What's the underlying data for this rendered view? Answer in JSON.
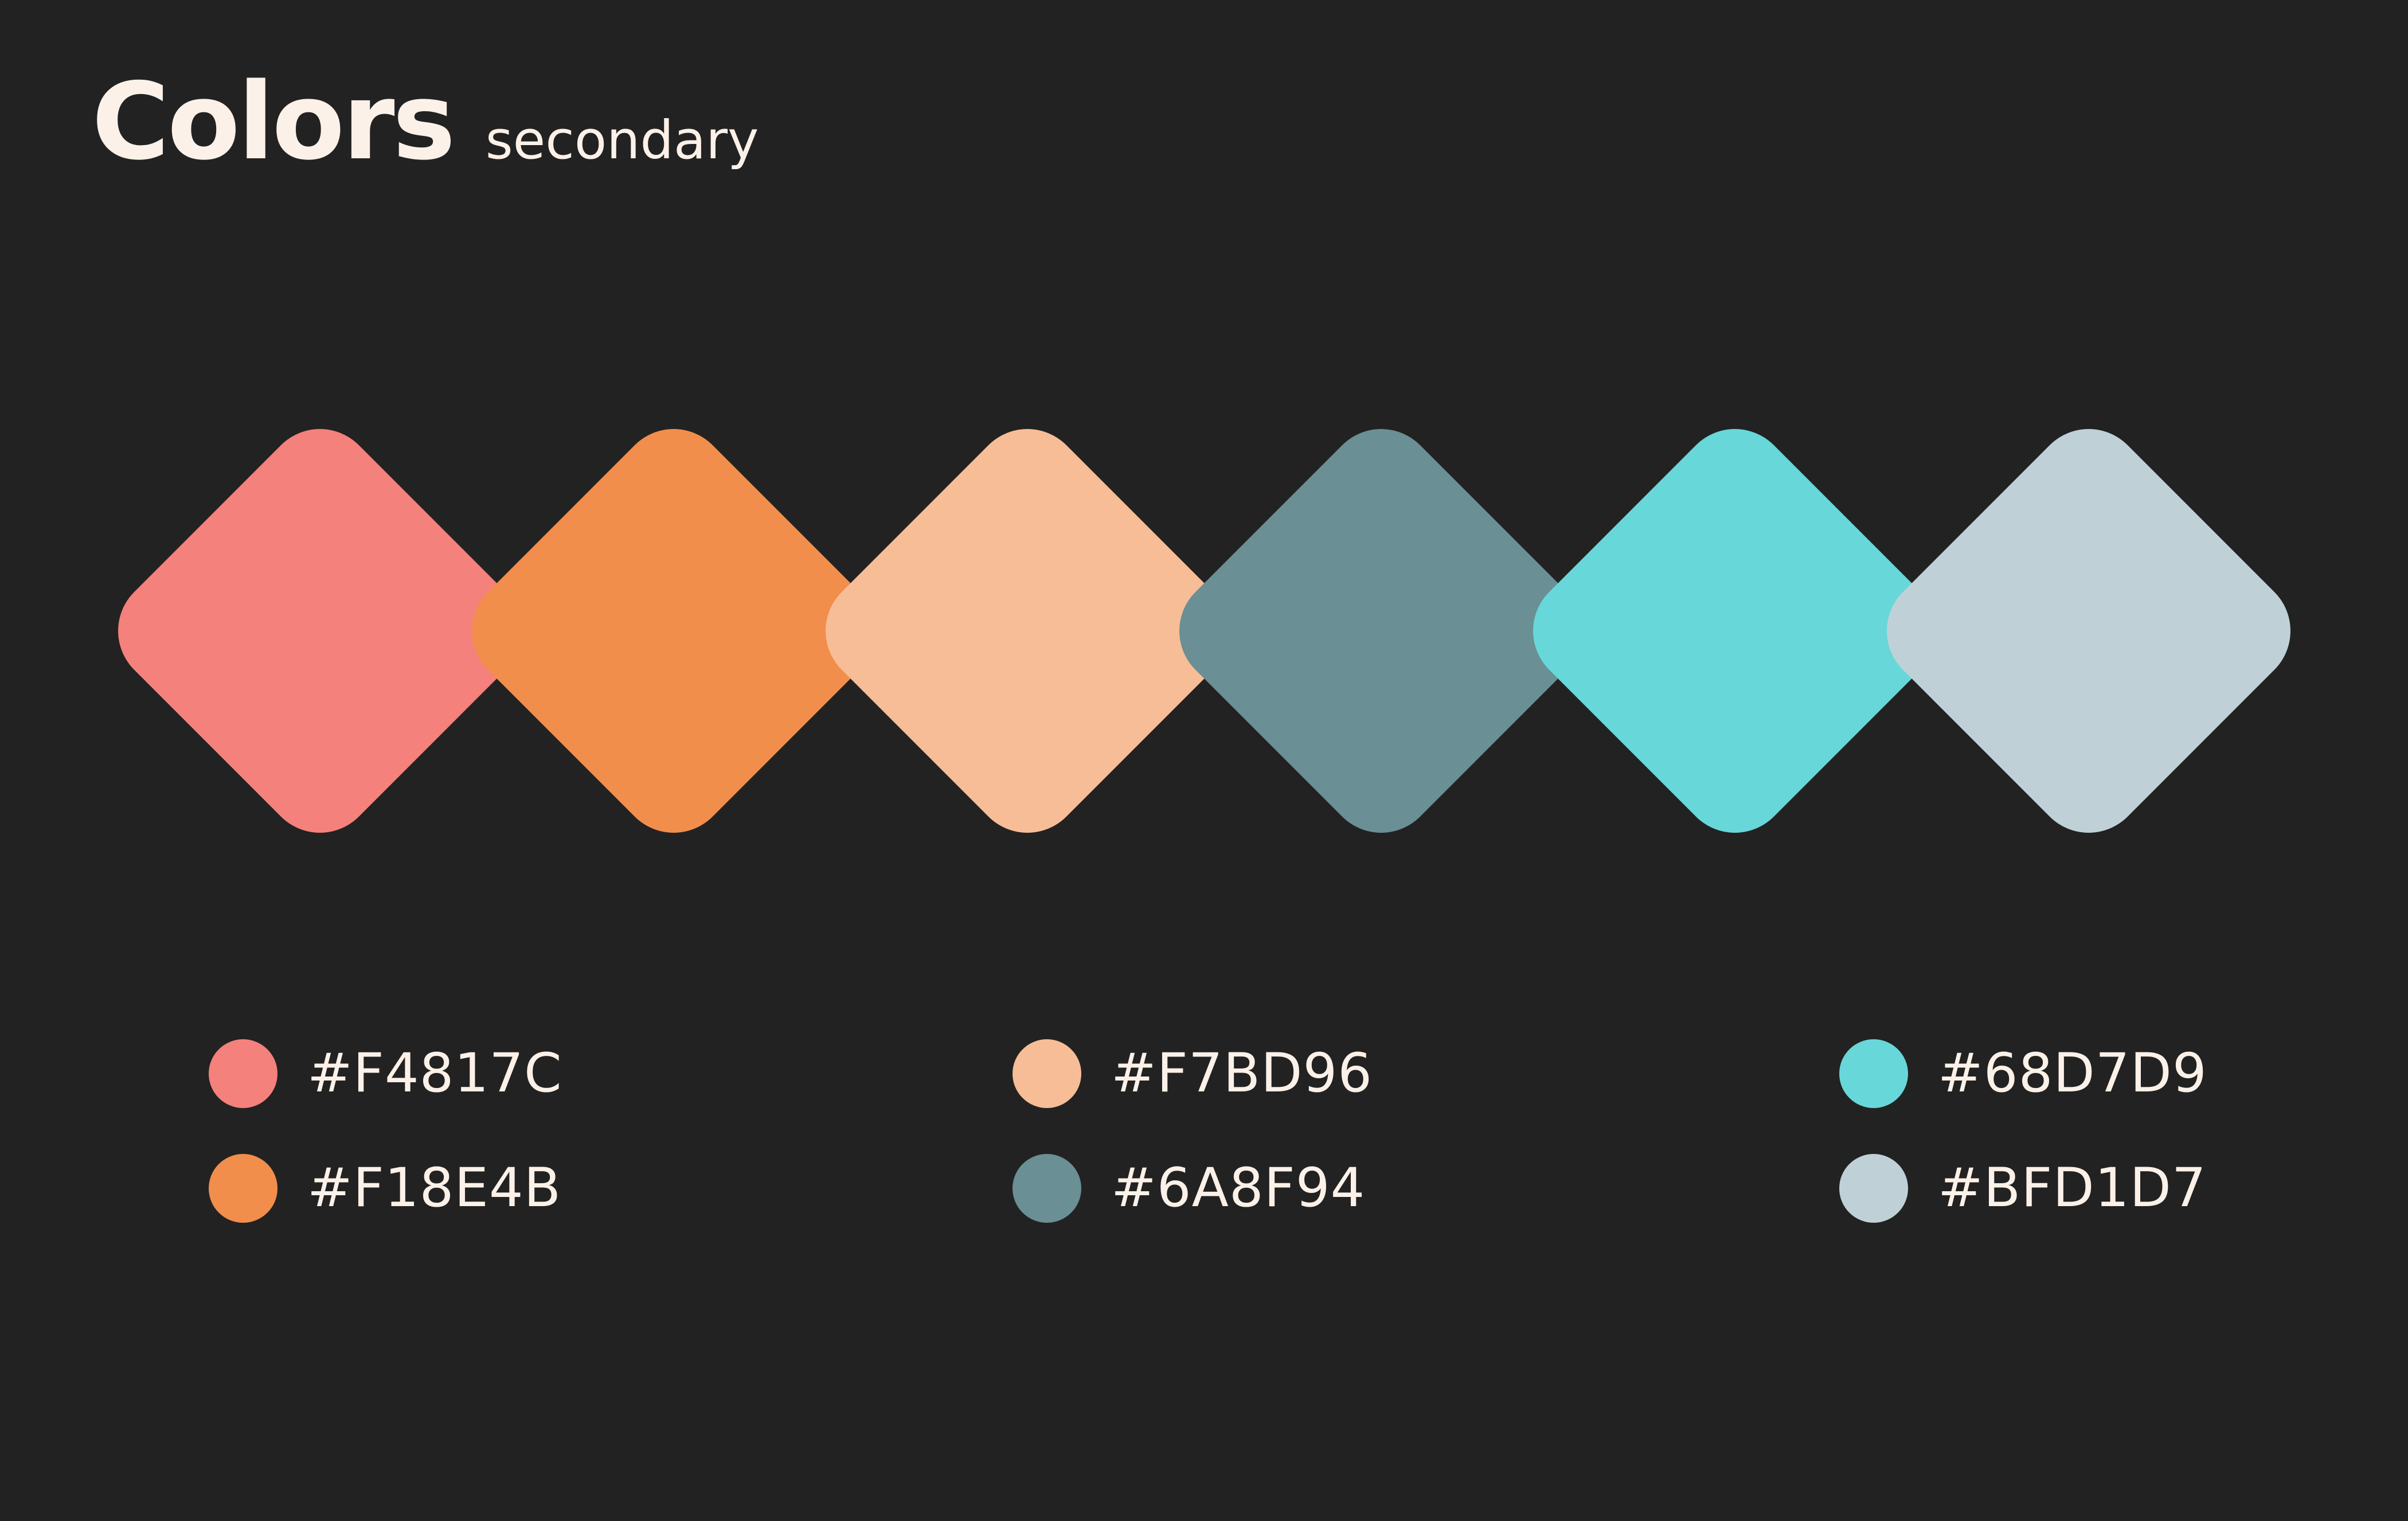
{
  "header": {
    "title": "Colors",
    "subtitle": "secondary"
  },
  "palette": [
    {
      "hex": "#F4817C",
      "label": "#F4817C"
    },
    {
      "hex": "#F18E4B",
      "label": "#F18E4B"
    },
    {
      "hex": "#F7BD96",
      "label": "#F7BD96"
    },
    {
      "hex": "#6A8F94",
      "label": "#6A8F94"
    },
    {
      "hex": "#68D7D9",
      "label": "#68D7D9"
    },
    {
      "hex": "#BFD1D7",
      "label": "#BFD1D7"
    }
  ],
  "colors": {
    "background": "#222222",
    "text": "#FCF1E8"
  }
}
